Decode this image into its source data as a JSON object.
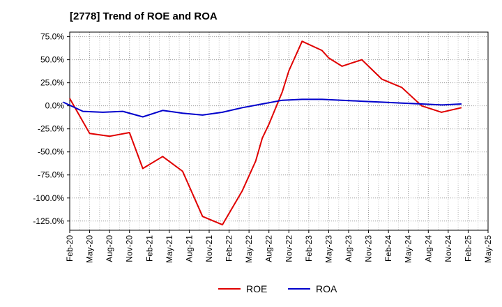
{
  "chart_data": {
    "type": "line",
    "title": "[2778]  Trend of ROE and ROA",
    "xlabel": "",
    "ylabel": "",
    "x_ticks": [
      "Feb-20",
      "May-20",
      "Aug-20",
      "Nov-20",
      "Feb-21",
      "May-21",
      "Aug-21",
      "Nov-21",
      "Feb-22",
      "May-22",
      "Aug-22",
      "Nov-22",
      "Feb-23",
      "May-23",
      "Aug-23",
      "Nov-23",
      "Feb-24",
      "May-24",
      "Aug-24",
      "Nov-24",
      "Feb-25",
      "May-25"
    ],
    "y_ticks": [
      "75.0%",
      "50.0%",
      "25.0%",
      "0.0%",
      "-25.0%",
      "-50.0%",
      "-75.0%",
      "-100.0%",
      "-125.0%"
    ],
    "y_tick_values": [
      75,
      50,
      25,
      0,
      -25,
      -50,
      -75,
      -100,
      -125
    ],
    "ylim": [
      -135,
      80
    ],
    "grid": true,
    "legend_position": "bottom",
    "series": [
      {
        "name": "ROE",
        "color": "#e00000",
        "points": [
          [
            "Feb-20",
            8
          ],
          [
            "May-20",
            -30
          ],
          [
            "Aug-20",
            -33
          ],
          [
            "Nov-20",
            -29
          ],
          [
            "Jan-21",
            -68
          ],
          [
            "Apr-21",
            -55
          ],
          [
            "Jul-21",
            -71
          ],
          [
            "Oct-21",
            -120
          ],
          [
            "Jan-22",
            -129
          ],
          [
            "Apr-22",
            -92
          ],
          [
            "Jun-22",
            -60
          ],
          [
            "Jul-22",
            -35
          ],
          [
            "Aug-22",
            -20
          ],
          [
            "Oct-22",
            15
          ],
          [
            "Nov-22",
            38
          ],
          [
            "Jan-23",
            70
          ],
          [
            "Apr-23",
            60
          ],
          [
            "May-23",
            52
          ],
          [
            "Jul-23",
            43
          ],
          [
            "Oct-23",
            50
          ],
          [
            "Jan-24",
            29
          ],
          [
            "Apr-24",
            20
          ],
          [
            "Jul-24",
            0
          ],
          [
            "Oct-24",
            -7
          ],
          [
            "Jan-25",
            -2
          ]
        ]
      },
      {
        "name": "ROA",
        "color": "#0000cc",
        "points": [
          [
            "Jan-20",
            4
          ],
          [
            "Apr-20",
            -6
          ],
          [
            "Jul-20",
            -7
          ],
          [
            "Oct-20",
            -6
          ],
          [
            "Jan-21",
            -12
          ],
          [
            "Apr-21",
            -5
          ],
          [
            "Jul-21",
            -8
          ],
          [
            "Oct-21",
            -10
          ],
          [
            "Jan-22",
            -7
          ],
          [
            "Apr-22",
            -2
          ],
          [
            "Jul-22",
            2
          ],
          [
            "Oct-22",
            6
          ],
          [
            "Jan-23",
            7
          ],
          [
            "Apr-23",
            7
          ],
          [
            "Jul-23",
            6
          ],
          [
            "Oct-23",
            5
          ],
          [
            "Jan-24",
            4
          ],
          [
            "Apr-24",
            3
          ],
          [
            "Jul-24",
            2
          ],
          [
            "Oct-24",
            1
          ],
          [
            "Jan-25",
            2
          ]
        ]
      }
    ]
  }
}
